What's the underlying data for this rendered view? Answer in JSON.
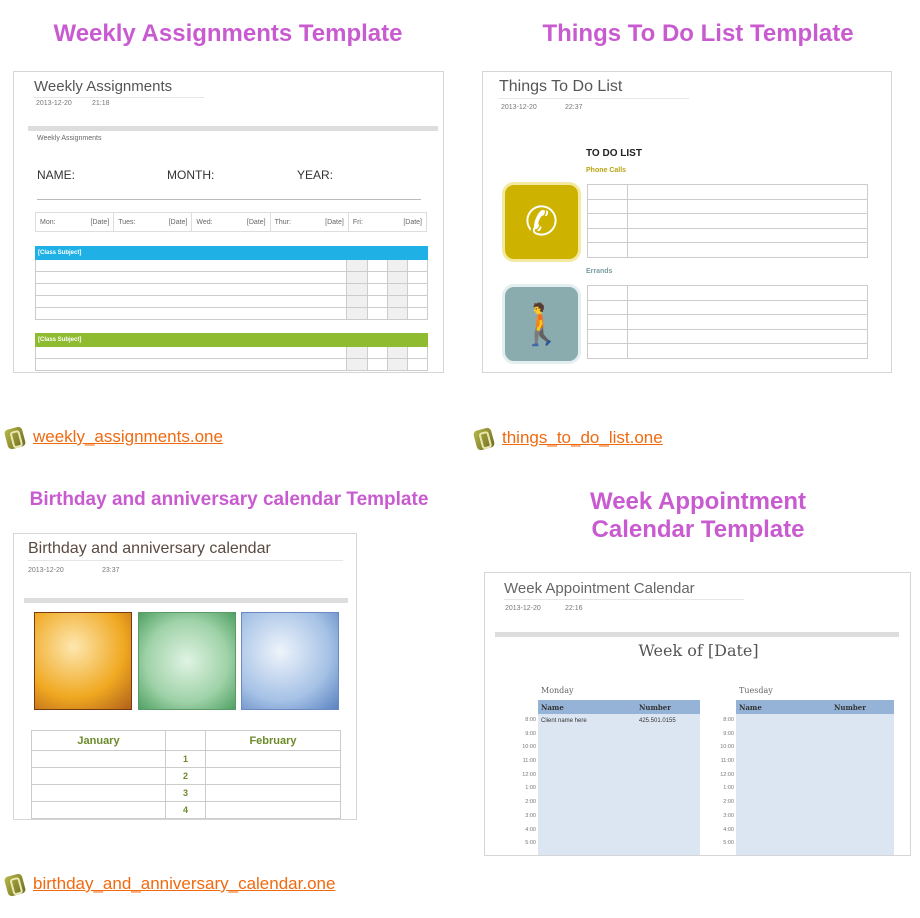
{
  "accent_heading": "#c95bd0",
  "link_color": "#f06a10",
  "cards": {
    "weekly": {
      "heading": "Weekly Assignments Template",
      "title": "Weekly Assignments",
      "date": "2013-12-20",
      "time": "21:18",
      "subtitle": "Weekly Assignments",
      "name_label": "NAME:",
      "month_label": "MONTH:",
      "year_label": "YEAR:",
      "days": [
        {
          "day": "Mon:",
          "date": "[Date]"
        },
        {
          "day": "Tues:",
          "date": "[Date]"
        },
        {
          "day": "Wed:",
          "date": "[Date]"
        },
        {
          "day": "Thur:",
          "date": "[Date]"
        },
        {
          "day": "Fri:",
          "date": "[Date]"
        }
      ],
      "subject1": "[Class Subject]",
      "subject2": "[Class Subject]",
      "subject1_color": "#1fb0e6",
      "subject2_color": "#8fbb30",
      "file": "weekly_assignments.one"
    },
    "todo": {
      "heading": "Things To Do List Template",
      "title": "Things To Do List",
      "date": "2013-12-20",
      "time": "22:37",
      "list_title": "TO DO LIST",
      "section1": "Phone Calls",
      "section2": "Errands",
      "icon1": "phone-icon",
      "icon2": "walking-shopper-icon",
      "file": "things_to_do_list.one"
    },
    "birthday": {
      "heading": "Birthday and anniversary calendar Template",
      "title": "Birthday and anniversary calendar",
      "date": "2013-12-20",
      "time": "23:37",
      "month1": "January",
      "month2": "February",
      "numbers": [
        "1",
        "2",
        "3",
        "4"
      ],
      "file": "birthday_and_anniversary_calendar.one"
    },
    "week": {
      "heading_line1": "Week Appointment",
      "heading_line2": "Calendar Template",
      "title": "Week Appointment Calendar",
      "date": "2013-12-20",
      "time": "22:16",
      "week_of": "Week of [Date]",
      "day1": "Monday",
      "day2": "Tuesday",
      "col_name": "Name",
      "col_number": "Number",
      "client_name": "Client name here",
      "client_number": "425.501.0155",
      "times": [
        "8:00",
        "9:00",
        "10:00",
        "11:00",
        "12:00",
        "1:00",
        "2:00",
        "3:00",
        "4:00",
        "5:00"
      ]
    }
  }
}
